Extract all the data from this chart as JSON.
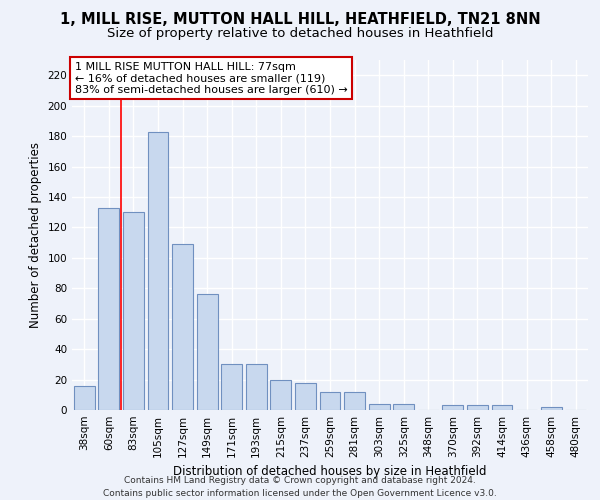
{
  "title": "1, MILL RISE, MUTTON HALL HILL, HEATHFIELD, TN21 8NN",
  "subtitle": "Size of property relative to detached houses in Heathfield",
  "xlabel": "Distribution of detached houses by size in Heathfield",
  "ylabel": "Number of detached properties",
  "bar_color": "#c8d8ee",
  "bar_edge_color": "#7090c0",
  "categories": [
    "38sqm",
    "60sqm",
    "83sqm",
    "105sqm",
    "127sqm",
    "149sqm",
    "171sqm",
    "193sqm",
    "215sqm",
    "237sqm",
    "259sqm",
    "281sqm",
    "303sqm",
    "325sqm",
    "348sqm",
    "370sqm",
    "392sqm",
    "414sqm",
    "436sqm",
    "458sqm",
    "480sqm"
  ],
  "values": [
    16,
    133,
    130,
    183,
    109,
    76,
    30,
    30,
    20,
    18,
    12,
    12,
    4,
    4,
    0,
    3,
    3,
    3,
    0,
    2,
    0
  ],
  "ylim": [
    0,
    230
  ],
  "yticks": [
    0,
    20,
    40,
    60,
    80,
    100,
    120,
    140,
    160,
    180,
    200,
    220
  ],
  "red_line_x": 1.5,
  "annotation_line1": "1 MILL RISE MUTTON HALL HILL: 77sqm",
  "annotation_line2": "← 16% of detached houses are smaller (119)",
  "annotation_line3": "83% of semi-detached houses are larger (610) →",
  "annotation_box_color": "#ffffff",
  "annotation_border_color": "#cc0000",
  "footer": "Contains HM Land Registry data © Crown copyright and database right 2024.\nContains public sector information licensed under the Open Government Licence v3.0.",
  "background_color": "#eef2fa",
  "grid_color": "#ffffff",
  "title_fontsize": 10.5,
  "subtitle_fontsize": 9.5,
  "axis_label_fontsize": 8.5,
  "tick_fontsize": 7.5,
  "annotation_fontsize": 8,
  "footer_fontsize": 6.5
}
